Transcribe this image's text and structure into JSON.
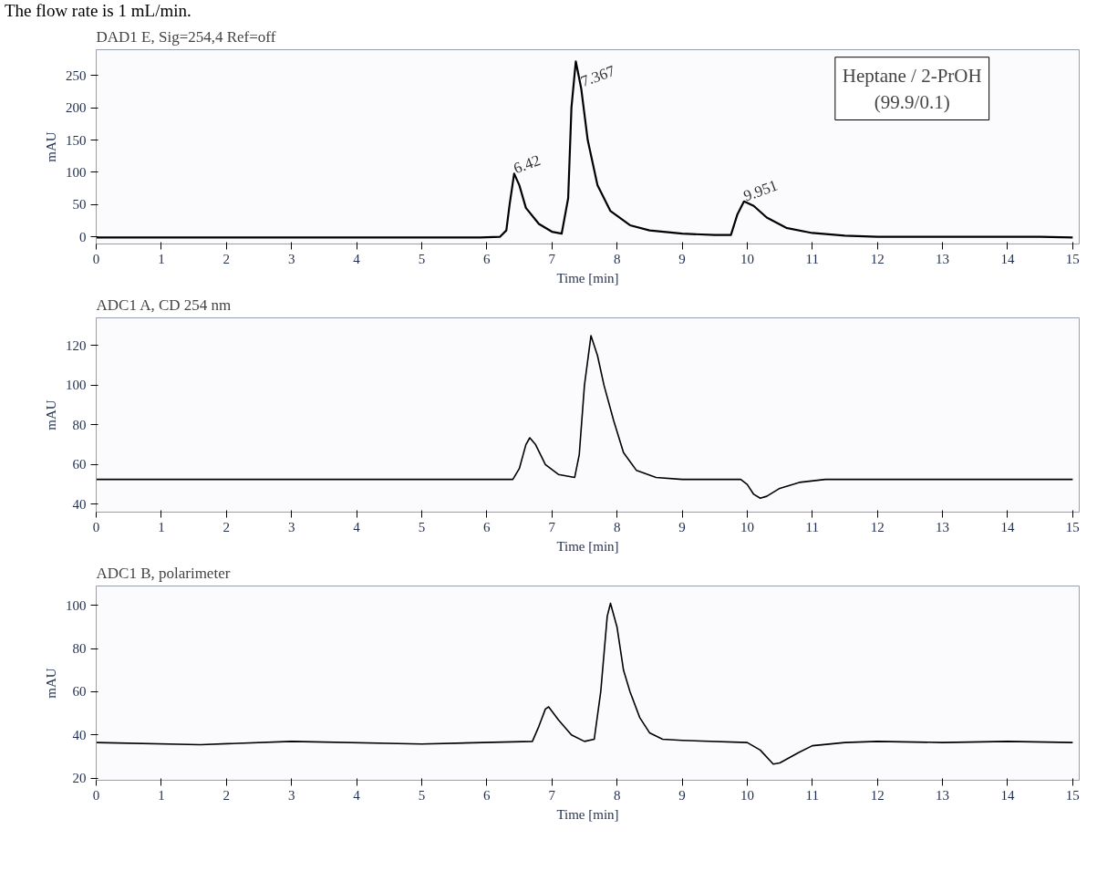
{
  "chart_data": [
    {
      "type": "line",
      "title": "DAD1 E, Sig=254,4 Ref=off",
      "xlabel": "Time [min]",
      "ylabel": "mAU",
      "xlim": [
        0,
        15.1
      ],
      "ylim": [
        -11,
        290
      ],
      "xticks": [
        0,
        1,
        2,
        3,
        4,
        5,
        6,
        7,
        8,
        9,
        10,
        11,
        12,
        13,
        14,
        15
      ],
      "yticks": [
        0,
        50,
        100,
        150,
        200,
        250
      ],
      "grid": false,
      "line_style": "solid",
      "annotations": [
        "The flow rate is 1 mL/min.",
        "Heptane / 2-PrOH\n(99.9/0.1)",
        {
          "text": "6.42",
          "x": 6.42,
          "y": 98
        },
        {
          "text": "7.367",
          "x": 7.367,
          "y": 272
        },
        {
          "text": "9.951",
          "x": 9.951,
          "y": 55
        }
      ],
      "series": [
        {
          "color": "#000000",
          "x": [
            0,
            5.9,
            6.2,
            6.3,
            6.35,
            6.42,
            6.5,
            6.6,
            6.8,
            7.0,
            7.15,
            7.25,
            7.3,
            7.367,
            7.45,
            7.55,
            7.7,
            7.9,
            8.2,
            8.5,
            9.0,
            9.5,
            9.75,
            9.85,
            9.951,
            10.1,
            10.3,
            10.6,
            11,
            11.5,
            12,
            14.5,
            15
          ],
          "values": [
            -1,
            -1,
            0,
            10,
            50,
            98,
            80,
            45,
            20,
            8,
            5,
            60,
            200,
            272,
            230,
            150,
            80,
            40,
            18,
            10,
            5,
            3,
            3,
            35,
            55,
            48,
            30,
            14,
            6,
            2,
            0,
            0,
            -1
          ]
        }
      ]
    },
    {
      "type": "line",
      "title": "ADC1 A, CD 254 nm",
      "xlabel": "Time [min]",
      "ylabel": "mAU",
      "xlim": [
        0,
        15.1
      ],
      "ylim": [
        36,
        134
      ],
      "xticks": [
        0,
        1,
        2,
        3,
        4,
        5,
        6,
        7,
        8,
        9,
        10,
        11,
        12,
        13,
        14,
        15
      ],
      "yticks": [
        40,
        60,
        80,
        100,
        120
      ],
      "grid": false,
      "line_style": "solid",
      "series": [
        {
          "color": "#000000",
          "x": [
            0,
            6.4,
            6.5,
            6.6,
            6.66,
            6.75,
            6.9,
            7.1,
            7.35,
            7.42,
            7.5,
            7.6,
            7.7,
            7.8,
            7.95,
            8.1,
            8.3,
            8.6,
            9,
            9.9,
            10.0,
            10.1,
            10.2,
            10.3,
            10.5,
            10.8,
            11.2,
            15
          ],
          "values": [
            52.5,
            52.5,
            58,
            70,
            73.5,
            70,
            60,
            55,
            53.5,
            65,
            100,
            125,
            115,
            100,
            82,
            66,
            57,
            53.5,
            52.5,
            52.5,
            50,
            45,
            43,
            44,
            48,
            51,
            52.5,
            52.5
          ]
        }
      ]
    },
    {
      "type": "line",
      "title": "ADC1 B, polarimeter",
      "xlabel": "Time [min]",
      "ylabel": "mAU",
      "xlim": [
        0,
        15.1
      ],
      "ylim": [
        19,
        109
      ],
      "xticks": [
        0,
        1,
        2,
        3,
        4,
        5,
        6,
        7,
        8,
        9,
        10,
        11,
        12,
        13,
        14,
        15
      ],
      "yticks": [
        20,
        40,
        60,
        80,
        100
      ],
      "grid": false,
      "line_style": "solid",
      "series": [
        {
          "color": "#000000",
          "x": [
            0,
            1.6,
            3,
            5,
            6.7,
            6.8,
            6.9,
            6.95,
            7.1,
            7.3,
            7.5,
            7.65,
            7.75,
            7.85,
            7.9,
            8.0,
            8.1,
            8.2,
            8.35,
            8.5,
            8.7,
            9,
            10,
            10.2,
            10.4,
            10.5,
            10.8,
            11,
            11.5,
            12,
            13,
            14,
            15
          ],
          "values": [
            36.5,
            35.5,
            37,
            35.8,
            37,
            44,
            52,
            53,
            47,
            40,
            37,
            38,
            60,
            95,
            101,
            90,
            70,
            60,
            48,
            41,
            38,
            37.5,
            36.5,
            33,
            26.5,
            27,
            32,
            35,
            36.5,
            37,
            36.5,
            37,
            36.5
          ]
        }
      ]
    }
  ]
}
